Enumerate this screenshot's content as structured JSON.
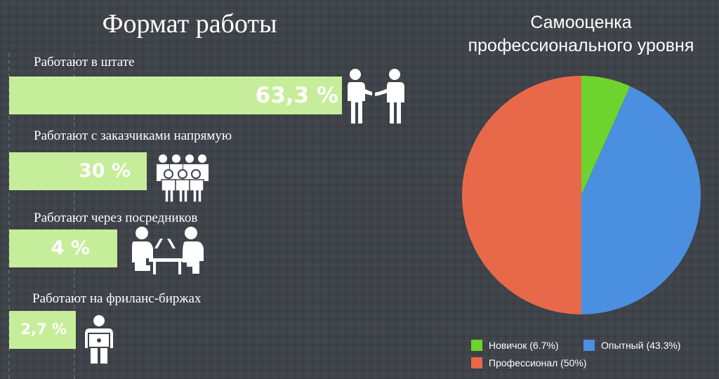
{
  "left": {
    "title": "Формат работы",
    "rows": [
      {
        "label": "Работают в штате",
        "value": "63,3 %"
      },
      {
        "label": "Работают с заказчиками напрямую",
        "value": "30 %"
      },
      {
        "label": "Работают через посредников",
        "value": "4 %"
      },
      {
        "label": "Работают на фриланс-биржах",
        "value": "2,7 %"
      }
    ]
  },
  "right": {
    "title_line1": "Самооценка",
    "title_line2": "профессионального уровня",
    "legend": [
      {
        "label": "Новичок (6.7%)",
        "color": "#6ed32c"
      },
      {
        "label": "Опытный (43.3%)",
        "color": "#4a8fe0"
      },
      {
        "label": "Профессионал (50%)",
        "color": "#e8694a"
      }
    ]
  },
  "icons": [
    "handshake-icon",
    "group-icon",
    "meeting-laptops-icon",
    "laptop-user-icon"
  ],
  "chart_data": [
    {
      "type": "bar",
      "title": "Формат работы",
      "categories": [
        "Работают в штате",
        "Работают с заказчиками напрямую",
        "Работают через посредников",
        "Работают на фриланс-биржах"
      ],
      "values": [
        63.3,
        30,
        4,
        2.7
      ],
      "color": "#c6ee9a"
    },
    {
      "type": "pie",
      "title": "Самооценка профессионального уровня",
      "categories": [
        "Новичок",
        "Опытный",
        "Профессионал"
      ],
      "values": [
        6.7,
        43.3,
        50
      ],
      "colors": [
        "#6ed32c",
        "#4a8fe0",
        "#e8694a"
      ],
      "legend": "bottom"
    }
  ]
}
